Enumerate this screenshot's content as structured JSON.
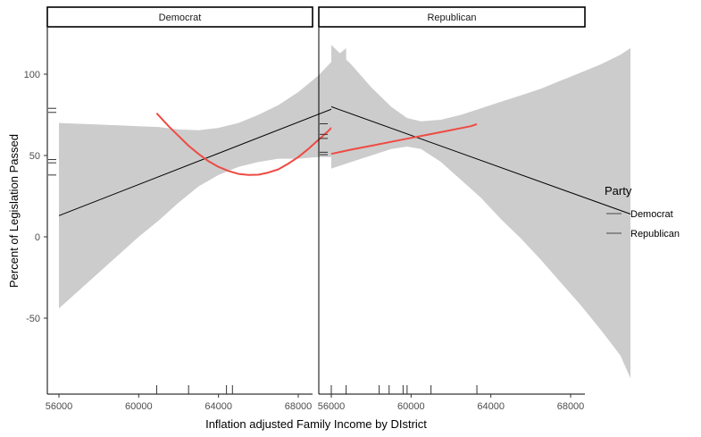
{
  "chart_data": {
    "type": "line",
    "xlabel": "Inflation adjusted Family Income by DIstrict",
    "ylabel": "Percent of Legislation Passed",
    "xlim": [
      55400,
      71200
    ],
    "ylim": [
      -97,
      130
    ],
    "x_ticks": [
      56000,
      60000,
      64000,
      68000
    ],
    "x_tick_labels": [
      "56000",
      "60000",
      "64000",
      "68000"
    ],
    "y_ticks": [
      -50,
      0,
      50,
      100
    ],
    "y_tick_labels": [
      "-50",
      "0",
      "50",
      "100"
    ],
    "grid": false,
    "legend": {
      "title": "Party",
      "position": "right",
      "entries": [
        {
          "label": "Democrat",
          "color": "#1a1a1a"
        },
        {
          "label": "Republican",
          "color": "#1a1a1a"
        }
      ]
    },
    "colors": {
      "band": "#cccccc",
      "linear_fit": "#000000",
      "quadratic_fit": "#ee4b43",
      "rug": "#333333"
    },
    "panels": [
      {
        "strip": "Democrat",
        "linear_fit": {
          "x": [
            56000,
            70400
          ],
          "y": [
            13,
            82
          ]
        },
        "confidence_band": {
          "x": [
            56000,
            57000,
            58000,
            59000,
            60000,
            61000,
            62000,
            63000,
            64000,
            65000,
            66000,
            67000,
            68000,
            69000,
            70000,
            70400
          ],
          "lower": [
            -44,
            -33,
            -22,
            -11,
            0,
            10,
            21,
            31,
            38,
            43,
            46,
            48,
            48,
            49,
            49,
            49
          ],
          "upper": [
            70,
            69.5,
            69,
            68.5,
            68,
            67.5,
            66,
            65.5,
            67,
            70,
            75,
            81,
            89,
            99,
            112,
            116
          ]
        },
        "quadratic_fit": {
          "x": [
            60900,
            61500,
            62000,
            62500,
            63000,
            63500,
            64000,
            64500,
            65000,
            65500,
            66000,
            66500,
            67000,
            67500,
            68000,
            68500,
            69000,
            69500,
            70000,
            70400
          ],
          "y": [
            76,
            68,
            62,
            56,
            51,
            46.5,
            43,
            40.5,
            38.7,
            38,
            38.2,
            39.5,
            41.5,
            45,
            49,
            54,
            59.5,
            65,
            71,
            76.5
          ]
        },
        "rug_x": [
          60900,
          62500,
          64400,
          64700,
          70400
        ],
        "rug_y": [
          79,
          76.5,
          47.5,
          45.5,
          38
        ]
      },
      {
        "strip": "Republican",
        "linear_fit": {
          "x": [
            56000,
            71000
          ],
          "y": [
            80,
            14
          ]
        },
        "confidence_band": {
          "x": [
            56000,
            57000,
            58000,
            59000,
            59800,
            60500,
            61500,
            62500,
            63500,
            64500,
            65500,
            66500,
            67500,
            68500,
            69500,
            70500,
            71000
          ],
          "lower": [
            42,
            46,
            50,
            54,
            55.5,
            54,
            46,
            35,
            24,
            11,
            -1,
            -14,
            -28,
            -42,
            -57,
            -73,
            -87
          ],
          "upper": [
            118,
            106,
            92,
            80,
            73,
            71,
            72,
            75,
            79,
            83,
            87,
            91,
            96,
            101,
            106,
            112,
            116
          ]
        },
        "quadratic_fit": {
          "x": [
            56000,
            57000,
            58000,
            59000,
            60000,
            61000,
            62000,
            63000,
            63300
          ],
          "y": [
            51,
            53.6,
            56,
            58.4,
            60.8,
            63.2,
            65.6,
            68,
            69.3
          ]
        },
        "rug_x": [
          56000,
          58400,
          58900,
          59600,
          59800,
          61000,
          63300
        ],
        "rug_y": [
          69.5,
          63,
          60.5,
          52,
          50.5
        ]
      }
    ]
  }
}
